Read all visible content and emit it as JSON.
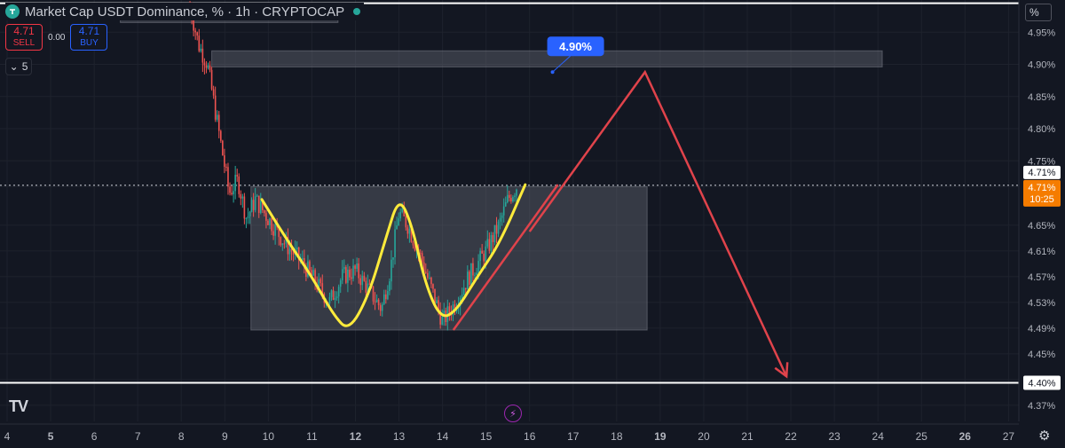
{
  "header": {
    "title": "Market Cap USDT Dominance, % · 1h · CRYPTOCAP"
  },
  "trade": {
    "sell_price": "4.71",
    "sell_label": "SELL",
    "spread": "0.00",
    "buy_price": "4.71",
    "buy_label": "BUY"
  },
  "indicator_count": "5",
  "scale_button": "%",
  "current_price_label": "4.71%",
  "countdown": "10:25",
  "level_label_upper": "4.71%",
  "level_label_lower": "4.40%",
  "target_badge": "4.90%",
  "colors": {
    "background": "#131722",
    "up": "#26a69a",
    "down": "#ef5350",
    "pattern": "#ffeb3b",
    "projection": "#e0434b",
    "badge": "#2962ff",
    "price_tag": "#f57c00"
  },
  "chart_data": {
    "type": "candlestick",
    "title": "Market Cap USDT Dominance, % · 1h · CRYPTOCAP",
    "y_unit": "%",
    "ylim": [
      4.345,
      5.0
    ],
    "y_ticks": [
      4.95,
      4.9,
      4.85,
      4.8,
      4.75,
      4.71,
      4.65,
      4.61,
      4.57,
      4.53,
      4.49,
      4.45,
      4.41,
      4.37
    ],
    "x_ticks": [
      "4",
      "5",
      "6",
      "7",
      "8",
      "9",
      "10",
      "11",
      "12",
      "13",
      "14",
      "15",
      "16",
      "17",
      "18",
      "19",
      "20",
      "21",
      "22",
      "23",
      "24",
      "25",
      "26",
      "27"
    ],
    "x_bold_ticks": [
      "5",
      "12",
      "19",
      "26"
    ],
    "xlim": [
      4,
      27.4
    ],
    "grid": true,
    "price_path": [
      [
        8.2,
        4.99
      ],
      [
        8.4,
        4.93
      ],
      [
        8.6,
        4.9
      ],
      [
        8.8,
        4.82
      ],
      [
        9.0,
        4.74
      ],
      [
        9.1,
        4.7
      ],
      [
        9.3,
        4.72
      ],
      [
        9.5,
        4.66
      ],
      [
        9.7,
        4.69
      ],
      [
        10.0,
        4.66
      ],
      [
        10.4,
        4.62
      ],
      [
        10.8,
        4.59
      ],
      [
        11.2,
        4.55
      ],
      [
        11.4,
        4.53
      ],
      [
        11.7,
        4.57
      ],
      [
        12.0,
        4.58
      ],
      [
        12.3,
        4.55
      ],
      [
        12.6,
        4.52
      ],
      [
        12.8,
        4.58
      ],
      [
        13.0,
        4.67
      ],
      [
        13.2,
        4.65
      ],
      [
        13.5,
        4.6
      ],
      [
        13.8,
        4.54
      ],
      [
        14.0,
        4.5
      ],
      [
        14.3,
        4.53
      ],
      [
        14.6,
        4.57
      ],
      [
        15.0,
        4.61
      ],
      [
        15.3,
        4.65
      ],
      [
        15.5,
        4.69
      ],
      [
        15.7,
        4.71
      ]
    ],
    "zones": [
      {
        "x0": 9.6,
        "x1": 18.7,
        "y0": 4.487,
        "y1": 4.71
      },
      {
        "x0": 8.7,
        "x1": 24.1,
        "y0": 4.896,
        "y1": 4.921
      },
      {
        "x0": 6.6,
        "x1": 11.6,
        "y0": 4.965,
        "y1": 4.995
      }
    ],
    "horizontal_lines": [
      {
        "y": 4.405,
        "style": "solid"
      },
      {
        "y": 4.995,
        "style": "solid"
      },
      {
        "y": 4.712,
        "style": "dotted"
      }
    ],
    "pattern_curve": [
      [
        9.85,
        4.69
      ],
      [
        10.4,
        4.63
      ],
      [
        11.0,
        4.57
      ],
      [
        11.5,
        4.51
      ],
      [
        11.85,
        4.485
      ],
      [
        12.3,
        4.54
      ],
      [
        12.7,
        4.63
      ],
      [
        13.0,
        4.695
      ],
      [
        13.3,
        4.65
      ],
      [
        13.6,
        4.56
      ],
      [
        13.95,
        4.505
      ],
      [
        14.3,
        4.515
      ],
      [
        14.8,
        4.57
      ],
      [
        15.3,
        4.62
      ],
      [
        15.9,
        4.713
      ]
    ],
    "trendline": [
      [
        14.25,
        4.487
      ],
      [
        16.65,
        4.713
      ]
    ],
    "projection": [
      [
        16.0,
        4.64
      ],
      [
        18.65,
        4.888
      ],
      [
        21.9,
        4.415
      ]
    ],
    "target": {
      "x": 17.75,
      "y": 4.888,
      "label": "4.90%"
    }
  }
}
